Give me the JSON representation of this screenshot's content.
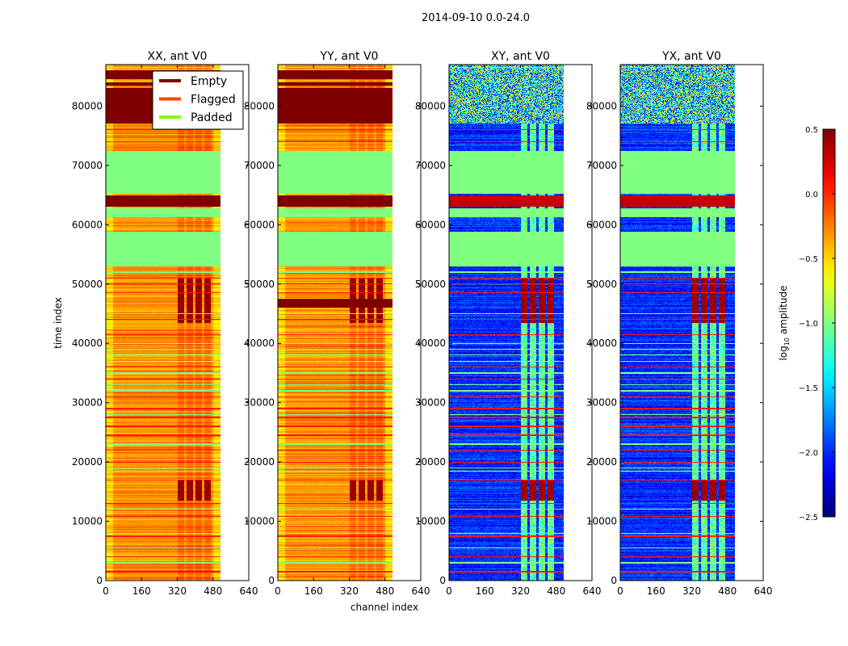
{
  "chart_data": {
    "type": "heatmap",
    "title": "2014-09-10 0.0-24.0",
    "xlabel": "channel index",
    "ylabel": "time index",
    "xlim": [
      0,
      640
    ],
    "ylim": [
      0,
      87000
    ],
    "n_channels": 512,
    "xticks": [
      0,
      160,
      320,
      480,
      640
    ],
    "yticks": [
      0,
      10000,
      20000,
      30000,
      40000,
      50000,
      60000,
      70000,
      80000
    ],
    "panels": [
      {
        "title": "XX, ant V0",
        "kind": "parallel"
      },
      {
        "title": "YY, ant V0",
        "kind": "parallel"
      },
      {
        "title": "XY, ant V0",
        "kind": "cross"
      },
      {
        "title": "YX, ant V0",
        "kind": "cross"
      }
    ],
    "legend": {
      "placement": "upper-left of first panel",
      "entries": [
        {
          "label": "Empty",
          "color": "#800000"
        },
        {
          "label": "Flagged",
          "color": "#ff4500"
        },
        {
          "label": "Padded",
          "color": "#7fff00"
        }
      ]
    },
    "colorbar": {
      "label_prefix": "log",
      "label_sub": "10",
      "label_suffix": " amplitude",
      "range": [
        -2.5,
        0.5
      ],
      "ticks": [
        "0.5",
        "0.0",
        "−0.5",
        "−1.0",
        "−1.5",
        "−2.0",
        "−2.5"
      ],
      "tick_values": [
        0.5,
        0.0,
        -0.5,
        -1.0,
        -1.5,
        -2.0,
        -2.5
      ],
      "colormap": "jet"
    },
    "bands": {
      "empty_time_ranges": [
        [
          77000,
          83000
        ],
        [
          83500,
          84000
        ],
        [
          84500,
          86000
        ],
        [
          63000,
          65000
        ]
      ],
      "padded_time_ranges": [
        [
          65200,
          72500
        ],
        [
          61200,
          62800
        ],
        [
          53000,
          58800
        ]
      ],
      "strong_rfi_time_ranges": [
        [
          13500,
          17000
        ],
        [
          43500,
          51000
        ]
      ],
      "noisy_time_ranges": [
        [
          77000,
          87000
        ]
      ],
      "flagged_rows": [
        1500,
        4000,
        7500,
        10800,
        13000,
        17000,
        20000,
        22000,
        24500,
        26000,
        27500,
        29000,
        31000,
        34000,
        36000,
        41500,
        44000,
        48500,
        50000,
        51000,
        74000,
        76000
      ],
      "padded_rows": [
        3000,
        5500,
        8000,
        12000,
        18500,
        19000,
        23000,
        28000,
        32000,
        33000,
        35000,
        37000,
        38000,
        39000,
        40000,
        45000,
        52000,
        86500
      ]
    }
  }
}
